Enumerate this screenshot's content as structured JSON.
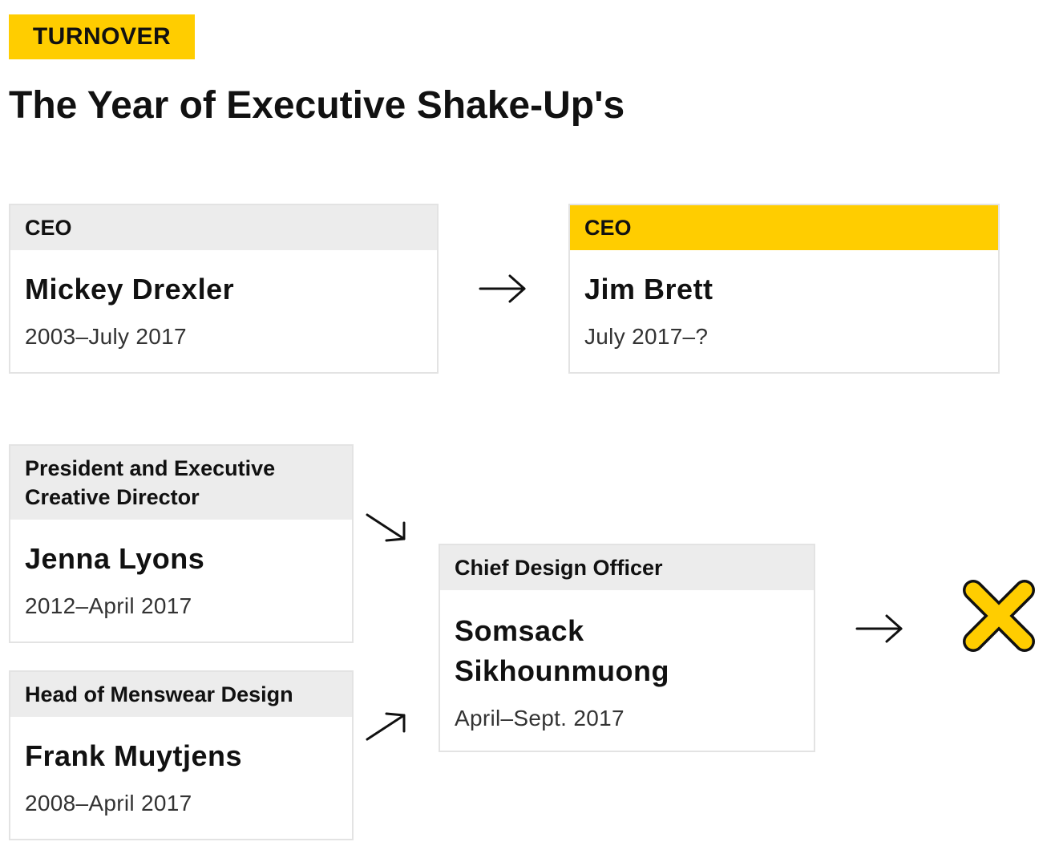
{
  "tag": "TURNOVER",
  "title": "The Year of Executive Shake-Up's",
  "colors": {
    "accent": "#ffcd00",
    "header_gray": "#ececec",
    "border": "#e3e3e3",
    "text": "#111111"
  },
  "cards": {
    "drexler": {
      "role": "CEO",
      "name": "Mickey Drexler",
      "dates": "2003–July 2017"
    },
    "brett": {
      "role": "CEO",
      "name": "Jim Brett",
      "dates": "July 2017–?"
    },
    "lyons": {
      "role": "President and Executive Creative Director",
      "name": "Jenna Lyons",
      "dates": "2012–April 2017"
    },
    "muytjens": {
      "role": "Head of Menswear Design",
      "name": "Frank Muytjens",
      "dates": "2008–April 2017"
    },
    "sikhounmuong": {
      "role": "Chief Design Officer",
      "name": "Somsack Sikhounmuong",
      "dates": "April–Sept. 2017"
    }
  },
  "icons": {
    "arrow_ceo": "arrow-right-icon",
    "arrow_lyons": "arrow-down-right-icon",
    "arrow_muytjens": "arrow-up-right-icon",
    "arrow_cdo": "arrow-right-icon",
    "end": "x-mark-icon"
  }
}
